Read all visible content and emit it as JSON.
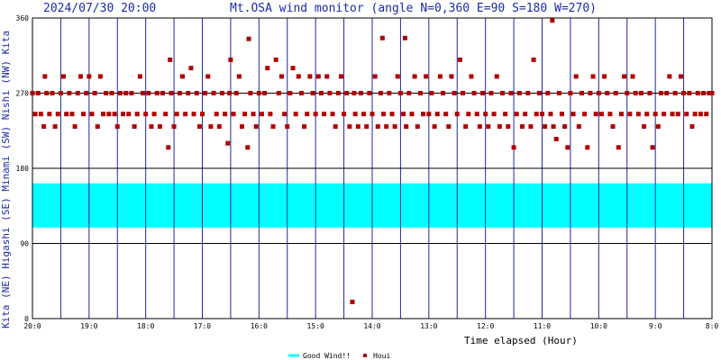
{
  "header": {
    "datetime": "2024/07/30 20:00",
    "title": "Mt.OSA wind monitor (angle N=0,360 E=90 S=180 W=270)"
  },
  "side_labels": [
    "Kita",
    "(NE)",
    "Higashi",
    "(SE)",
    "Minami",
    "(SW)",
    "Nishi",
    "(NW)",
    "Kita"
  ],
  "legend": {
    "good_wind_label": "Good Wind!!",
    "houi_label": "Houi"
  },
  "colors": {
    "frame": "#000000",
    "vgrid": "#1a2aa8",
    "hgrid": "#000000",
    "band": "#00ffff",
    "points": "#b00000",
    "header_text": "#1a2aa8"
  },
  "chart_data": {
    "type": "scatter",
    "title": "Mt.OSA wind monitor (angle N=0,360 E=90 S=180 W=270)",
    "xlabel": "Time elapsed (Hour)",
    "ylabel": "Kita (NE) Higashi (SE) Minami (SW) Nishi (NW) Kita",
    "x_reversed": true,
    "xlim": [
      20,
      8
    ],
    "ylim": [
      0,
      360
    ],
    "x_ticks": [
      {
        "v": 20,
        "label": "20:0"
      },
      {
        "v": 19,
        "label": "19:0"
      },
      {
        "v": 18,
        "label": "18:0"
      },
      {
        "v": 17,
        "label": "17:0"
      },
      {
        "v": 16,
        "label": "16:0"
      },
      {
        "v": 15,
        "label": "15:0"
      },
      {
        "v": 14,
        "label": "14:0"
      },
      {
        "v": 13,
        "label": "13:0"
      },
      {
        "v": 12,
        "label": "12:0"
      },
      {
        "v": 11,
        "label": "11:0"
      },
      {
        "v": 10,
        "label": "10:0"
      },
      {
        "v": 9,
        "label": "9:0"
      },
      {
        "v": 8,
        "label": "8:0"
      }
    ],
    "y_ticks": [
      {
        "v": 0,
        "label": "0"
      },
      {
        "v": 90,
        "label": "90"
      },
      {
        "v": 180,
        "label": "180"
      },
      {
        "v": 270,
        "label": "270"
      },
      {
        "v": 360,
        "label": "360"
      }
    ],
    "x_minor_step": 0.5,
    "good_wind_band": [
      162,
      109
    ],
    "series": [
      {
        "name": "Houi",
        "points": [
          [
            20.0,
            270
          ],
          [
            19.95,
            245
          ],
          [
            19.9,
            270
          ],
          [
            19.85,
            245
          ],
          [
            19.8,
            230
          ],
          [
            19.78,
            290
          ],
          [
            19.75,
            270
          ],
          [
            19.7,
            245
          ],
          [
            19.65,
            270
          ],
          [
            19.6,
            230
          ],
          [
            19.55,
            245
          ],
          [
            19.5,
            270
          ],
          [
            19.45,
            290
          ],
          [
            19.4,
            245
          ],
          [
            19.35,
            270
          ],
          [
            19.3,
            245
          ],
          [
            19.25,
            230
          ],
          [
            19.2,
            270
          ],
          [
            19.15,
            290
          ],
          [
            19.1,
            245
          ],
          [
            19.05,
            270
          ],
          [
            19.0,
            290
          ],
          [
            18.95,
            245
          ],
          [
            18.9,
            270
          ],
          [
            18.85,
            230
          ],
          [
            18.8,
            290
          ],
          [
            18.75,
            245
          ],
          [
            18.7,
            270
          ],
          [
            18.65,
            245
          ],
          [
            18.6,
            270
          ],
          [
            18.55,
            245
          ],
          [
            18.5,
            230
          ],
          [
            18.45,
            270
          ],
          [
            18.4,
            245
          ],
          [
            18.35,
            270
          ],
          [
            18.3,
            245
          ],
          [
            18.25,
            270
          ],
          [
            18.2,
            230
          ],
          [
            18.15,
            245
          ],
          [
            18.1,
            290
          ],
          [
            18.05,
            270
          ],
          [
            18.0,
            245
          ],
          [
            17.95,
            270
          ],
          [
            17.9,
            230
          ],
          [
            17.85,
            245
          ],
          [
            17.8,
            270
          ],
          [
            17.75,
            230
          ],
          [
            17.7,
            270
          ],
          [
            17.65,
            245
          ],
          [
            17.6,
            205
          ],
          [
            17.57,
            310
          ],
          [
            17.55,
            270
          ],
          [
            17.5,
            230
          ],
          [
            17.45,
            245
          ],
          [
            17.4,
            270
          ],
          [
            17.35,
            290
          ],
          [
            17.3,
            245
          ],
          [
            17.25,
            270
          ],
          [
            17.2,
            300
          ],
          [
            17.15,
            245
          ],
          [
            17.1,
            270
          ],
          [
            17.05,
            230
          ],
          [
            17.0,
            245
          ],
          [
            16.95,
            270
          ],
          [
            16.9,
            290
          ],
          [
            16.85,
            230
          ],
          [
            16.8,
            270
          ],
          [
            16.75,
            245
          ],
          [
            16.7,
            230
          ],
          [
            16.65,
            270
          ],
          [
            16.6,
            245
          ],
          [
            16.55,
            210
          ],
          [
            16.52,
            270
          ],
          [
            16.5,
            310
          ],
          [
            16.45,
            245
          ],
          [
            16.4,
            270
          ],
          [
            16.35,
            290
          ],
          [
            16.3,
            230
          ],
          [
            16.25,
            245
          ],
          [
            16.2,
            205
          ],
          [
            16.18,
            335
          ],
          [
            16.15,
            270
          ],
          [
            16.1,
            245
          ],
          [
            16.05,
            230
          ],
          [
            16.0,
            270
          ],
          [
            15.95,
            245
          ],
          [
            15.9,
            270
          ],
          [
            15.85,
            300
          ],
          [
            15.8,
            245
          ],
          [
            15.75,
            230
          ],
          [
            15.7,
            310
          ],
          [
            15.65,
            270
          ],
          [
            15.6,
            290
          ],
          [
            15.55,
            245
          ],
          [
            15.5,
            230
          ],
          [
            15.45,
            270
          ],
          [
            15.4,
            300
          ],
          [
            15.35,
            245
          ],
          [
            15.3,
            290
          ],
          [
            15.25,
            270
          ],
          [
            15.2,
            230
          ],
          [
            15.15,
            245
          ],
          [
            15.1,
            290
          ],
          [
            15.05,
            270
          ],
          [
            15.0,
            245
          ],
          [
            14.95,
            290
          ],
          [
            14.9,
            270
          ],
          [
            14.85,
            245
          ],
          [
            14.8,
            290
          ],
          [
            14.75,
            270
          ],
          [
            14.7,
            245
          ],
          [
            14.65,
            230
          ],
          [
            14.6,
            270
          ],
          [
            14.55,
            290
          ],
          [
            14.5,
            245
          ],
          [
            14.45,
            270
          ],
          [
            14.4,
            230
          ],
          [
            14.35,
            20
          ],
          [
            14.32,
            270
          ],
          [
            14.3,
            245
          ],
          [
            14.25,
            230
          ],
          [
            14.2,
            270
          ],
          [
            14.15,
            245
          ],
          [
            14.1,
            230
          ],
          [
            14.05,
            270
          ],
          [
            14.0,
            245
          ],
          [
            13.95,
            290
          ],
          [
            13.9,
            230
          ],
          [
            13.85,
            270
          ],
          [
            13.82,
            336
          ],
          [
            13.8,
            245
          ],
          [
            13.75,
            230
          ],
          [
            13.7,
            270
          ],
          [
            13.65,
            245
          ],
          [
            13.6,
            230
          ],
          [
            13.55,
            290
          ],
          [
            13.5,
            270
          ],
          [
            13.45,
            245
          ],
          [
            13.42,
            336
          ],
          [
            13.4,
            230
          ],
          [
            13.35,
            270
          ],
          [
            13.3,
            245
          ],
          [
            13.25,
            290
          ],
          [
            13.2,
            230
          ],
          [
            13.15,
            270
          ],
          [
            13.1,
            245
          ],
          [
            13.05,
            290
          ],
          [
            13.0,
            245
          ],
          [
            12.95,
            270
          ],
          [
            12.9,
            230
          ],
          [
            12.85,
            245
          ],
          [
            12.8,
            290
          ],
          [
            12.75,
            270
          ],
          [
            12.7,
            245
          ],
          [
            12.65,
            230
          ],
          [
            12.6,
            290
          ],
          [
            12.55,
            270
          ],
          [
            12.5,
            245
          ],
          [
            12.45,
            310
          ],
          [
            12.4,
            270
          ],
          [
            12.35,
            230
          ],
          [
            12.3,
            245
          ],
          [
            12.25,
            290
          ],
          [
            12.2,
            270
          ],
          [
            12.15,
            245
          ],
          [
            12.1,
            230
          ],
          [
            12.05,
            270
          ],
          [
            12.0,
            245
          ],
          [
            11.95,
            230
          ],
          [
            11.9,
            270
          ],
          [
            11.85,
            245
          ],
          [
            11.8,
            290
          ],
          [
            11.75,
            230
          ],
          [
            11.7,
            270
          ],
          [
            11.65,
            245
          ],
          [
            11.6,
            230
          ],
          [
            11.55,
            270
          ],
          [
            11.5,
            205
          ],
          [
            11.45,
            245
          ],
          [
            11.4,
            270
          ],
          [
            11.35,
            230
          ],
          [
            11.3,
            245
          ],
          [
            11.25,
            270
          ],
          [
            11.2,
            230
          ],
          [
            11.15,
            310
          ],
          [
            11.1,
            245
          ],
          [
            11.05,
            270
          ],
          [
            11.0,
            245
          ],
          [
            10.95,
            230
          ],
          [
            10.9,
            270
          ],
          [
            10.85,
            245
          ],
          [
            10.82,
            357
          ],
          [
            10.8,
            230
          ],
          [
            10.75,
            215
          ],
          [
            10.7,
            270
          ],
          [
            10.65,
            245
          ],
          [
            10.6,
            230
          ],
          [
            10.55,
            205
          ],
          [
            10.5,
            270
          ],
          [
            10.45,
            245
          ],
          [
            10.4,
            290
          ],
          [
            10.35,
            230
          ],
          [
            10.3,
            270
          ],
          [
            10.25,
            245
          ],
          [
            10.2,
            205
          ],
          [
            10.15,
            270
          ],
          [
            10.1,
            290
          ],
          [
            10.05,
            245
          ],
          [
            10.0,
            270
          ],
          [
            9.95,
            245
          ],
          [
            9.9,
            290
          ],
          [
            9.85,
            270
          ],
          [
            9.8,
            245
          ],
          [
            9.75,
            230
          ],
          [
            9.7,
            270
          ],
          [
            9.65,
            205
          ],
          [
            9.6,
            245
          ],
          [
            9.55,
            290
          ],
          [
            9.5,
            270
          ],
          [
            9.45,
            245
          ],
          [
            9.4,
            290
          ],
          [
            9.35,
            270
          ],
          [
            9.3,
            245
          ],
          [
            9.25,
            270
          ],
          [
            9.2,
            230
          ],
          [
            9.15,
            245
          ],
          [
            9.1,
            270
          ],
          [
            9.05,
            205
          ],
          [
            9.0,
            245
          ],
          [
            8.95,
            230
          ],
          [
            8.9,
            270
          ],
          [
            8.85,
            245
          ],
          [
            8.8,
            270
          ],
          [
            8.75,
            290
          ],
          [
            8.7,
            245
          ],
          [
            8.65,
            270
          ],
          [
            8.6,
            245
          ],
          [
            8.55,
            290
          ],
          [
            8.5,
            270
          ],
          [
            8.45,
            245
          ],
          [
            8.4,
            270
          ],
          [
            8.35,
            230
          ],
          [
            8.3,
            245
          ],
          [
            8.25,
            270
          ],
          [
            8.2,
            245
          ],
          [
            8.15,
            270
          ],
          [
            8.1,
            245
          ],
          [
            8.05,
            270
          ],
          [
            8.0,
            270
          ]
        ]
      }
    ]
  }
}
